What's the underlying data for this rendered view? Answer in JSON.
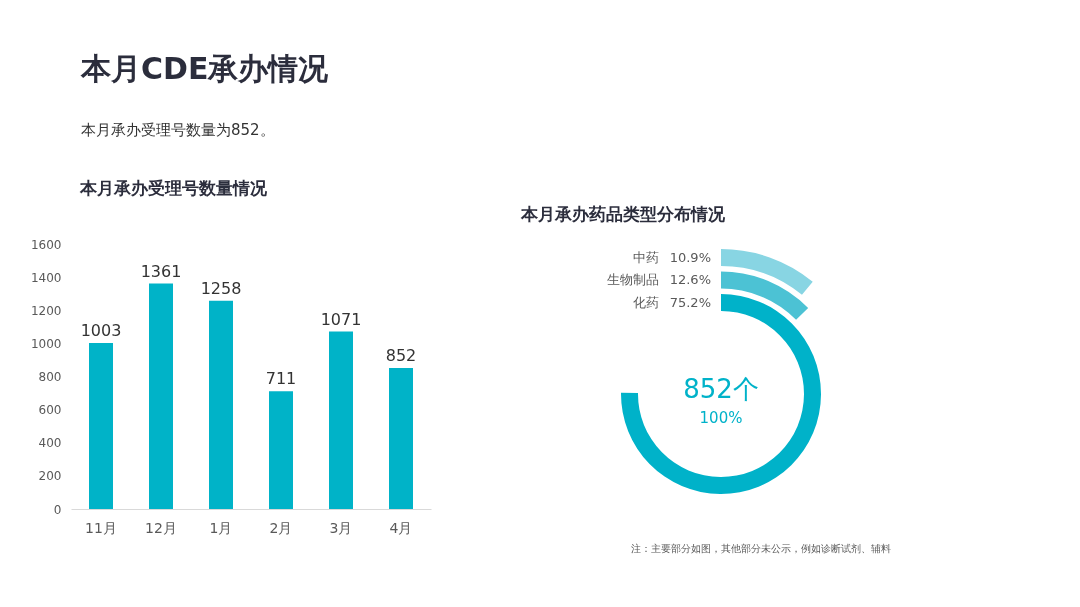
{
  "chart_data": [
    {
      "type": "other",
      "title": "本月CDE承办情况",
      "subtitle": "本月承办受理号数量为852。"
    },
    {
      "type": "bar",
      "title": "本月承办受理号数量情况",
      "categories": [
        "11月",
        "12月",
        "1月",
        "2月",
        "3月",
        "4月"
      ],
      "values": [
        1003,
        1361,
        1258,
        711,
        1071,
        852
      ],
      "color": "#00b3c8",
      "ylim": [
        0,
        1600
      ],
      "yticks": [
        0,
        200,
        400,
        600,
        800,
        1000,
        1200,
        1400,
        1600
      ],
      "grid": false,
      "data_labels": true
    },
    {
      "type": "other",
      "title": "本月承办药品类型分布情况",
      "categories": [
        "中药",
        "生物制品",
        "化药"
      ],
      "values": [
        10.9,
        12.6,
        75.2
      ],
      "value_labels": [
        "10.9%",
        "12.6%",
        "75.2%"
      ],
      "colors": [
        "#88d5e3",
        "#4cc2d4",
        "#00b2c9"
      ],
      "annotations": [
        "852个",
        "100%",
        "注：主要部分如图，其他部分未公示，例如诊断试剂、辅料"
      ]
    }
  ]
}
